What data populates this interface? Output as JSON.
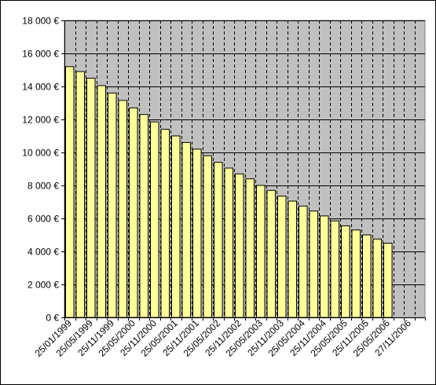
{
  "chart_data": {
    "type": "bar",
    "x_tick_labels": [
      "25/01/1999",
      "25/05/1999",
      "25/11/1999",
      "25/05/2000",
      "25/11/2000",
      "25/05/2001",
      "25/11/2001",
      "25/05/2002",
      "25/11/2002",
      "25/05/2003",
      "25/11/2003",
      "25/05/2004",
      "25/11/2004",
      "25/05/2005",
      "25/11/2005",
      "25/05/2006",
      "27/11/2006"
    ],
    "values": [
      15200,
      14900,
      14500,
      14050,
      13600,
      13150,
      12700,
      12300,
      11850,
      11400,
      11000,
      10600,
      10200,
      9800,
      9400,
      9050,
      8700,
      8400,
      8000,
      7700,
      7350,
      7050,
      6750,
      6450,
      6150,
      5850,
      5550,
      5300,
      5000,
      4750,
      4500
    ],
    "y_tick_labels": [
      "0 €",
      "2 000 €",
      "4 000 €",
      "6 000 €",
      "8 000 €",
      "10 000 €",
      "12 000 €",
      "14 000 €",
      "16 000 €",
      "18 000 €"
    ],
    "ylim": [
      0,
      18000
    ],
    "y_step": 2000,
    "x_slots": 34,
    "grid": true,
    "legend": "none",
    "colors": {
      "plot_background": "#c0c0c0",
      "bar_fill": "#ffff99",
      "bar_stroke": "#000000",
      "gridline": "#000000"
    }
  }
}
